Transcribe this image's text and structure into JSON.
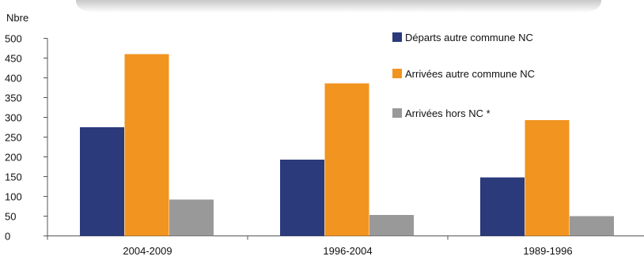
{
  "chart_data": {
    "type": "bar",
    "ylabel": "Nbre",
    "ylim": [
      0,
      500
    ],
    "yticks": [
      0,
      50,
      100,
      150,
      200,
      250,
      300,
      350,
      400,
      450,
      500
    ],
    "categories": [
      "2004-2009",
      "1996-2004",
      "1989-1996"
    ],
    "series": [
      {
        "name": "Départs autre commune NC",
        "color": "#2b3a7b",
        "values": [
          275,
          193,
          148
        ]
      },
      {
        "name": "Arrivées autre commune NC",
        "color": "#f29420",
        "values": [
          460,
          386,
          293
        ]
      },
      {
        "name": "Arrivées hors NC *",
        "color": "#999999",
        "values": [
          92,
          53,
          50
        ]
      }
    ],
    "grid": false,
    "legend_position": "top-right"
  }
}
